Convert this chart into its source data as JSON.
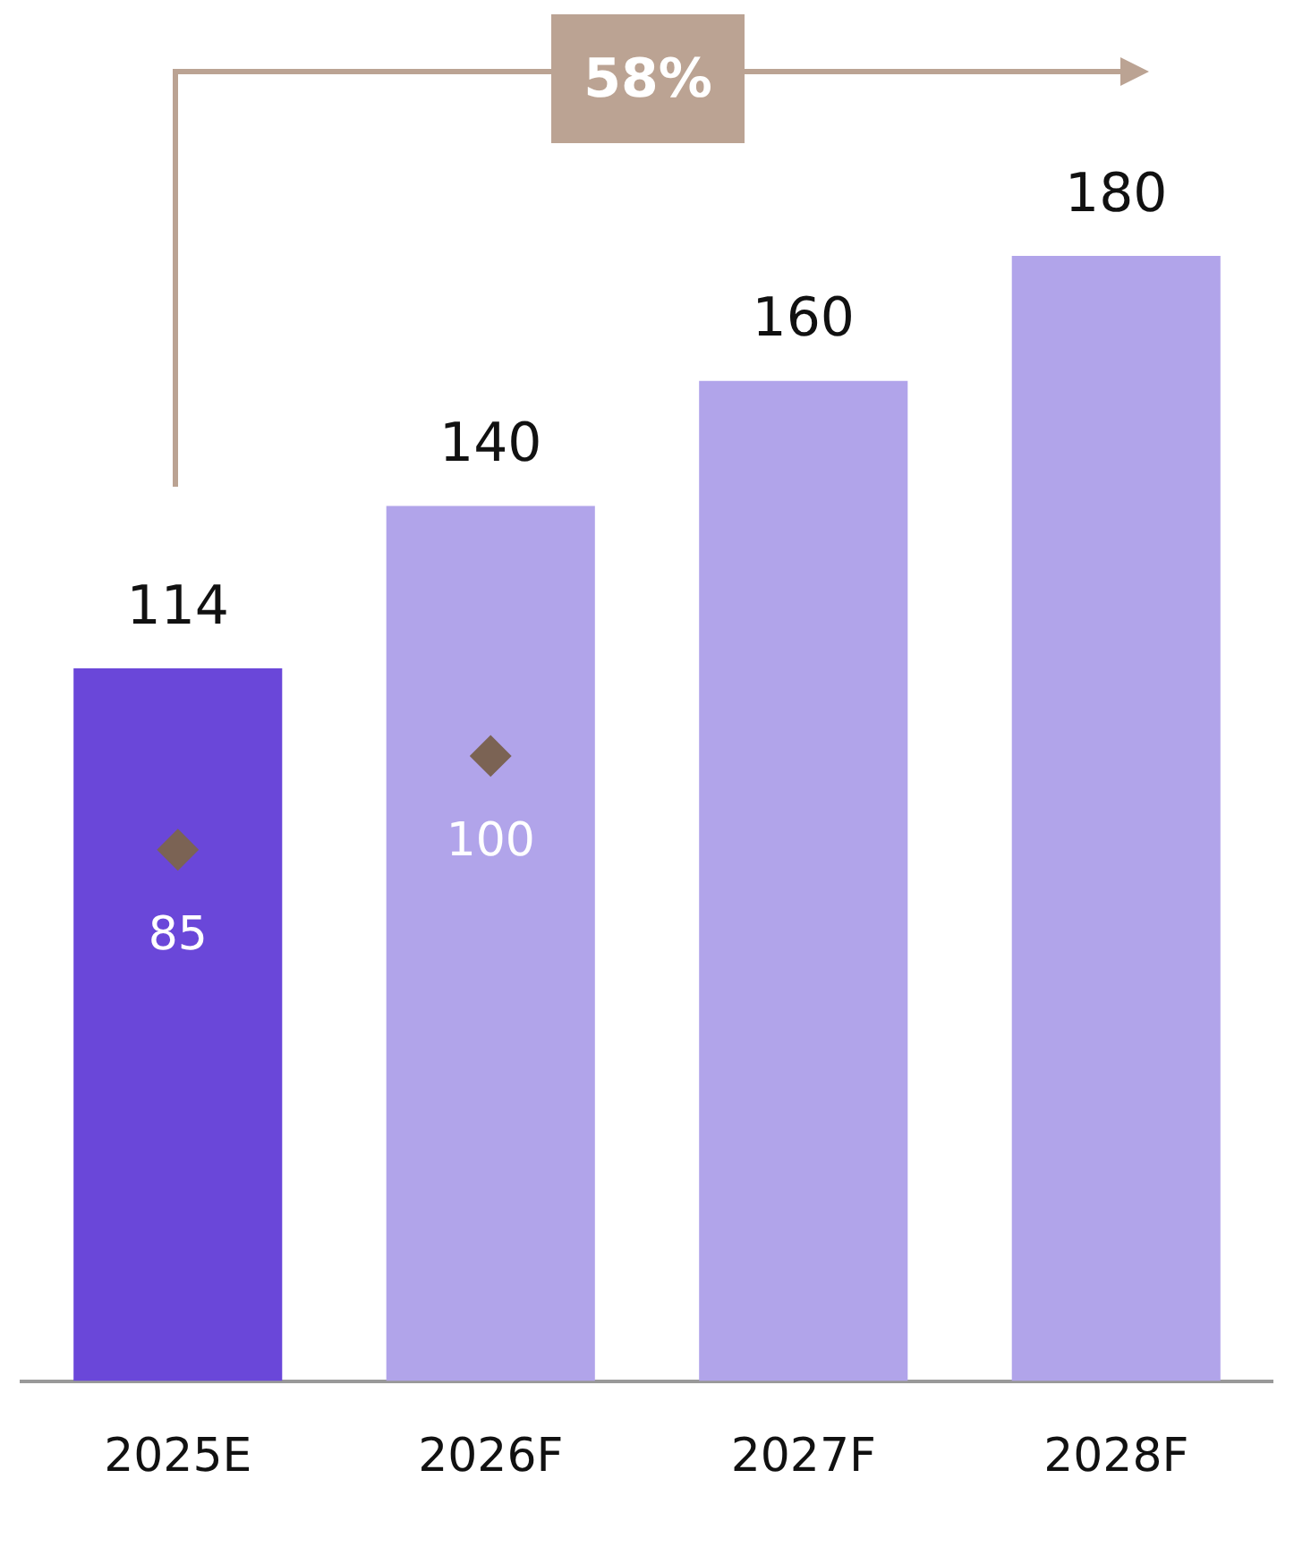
{
  "chart_data": {
    "type": "bar",
    "categories": [
      "2025E",
      "2026F",
      "2027F",
      "2028F"
    ],
    "series": [
      {
        "colors": [
          "#6a47d9",
          "#b1a4ea",
          "#b1a4ea",
          "#b1a4ea"
        ],
        "values": [
          114,
          140,
          160,
          180
        ]
      },
      {
        "type": "scatter",
        "x": [
          "2025E",
          "2026F"
        ],
        "values": [
          85,
          100
        ],
        "color": "#7b6354",
        "marker": "diamond"
      }
    ],
    "tick_labels": "x",
    "grid": false,
    "legend": false,
    "data_labels": true,
    "annotations": [
      "58%"
    ]
  }
}
